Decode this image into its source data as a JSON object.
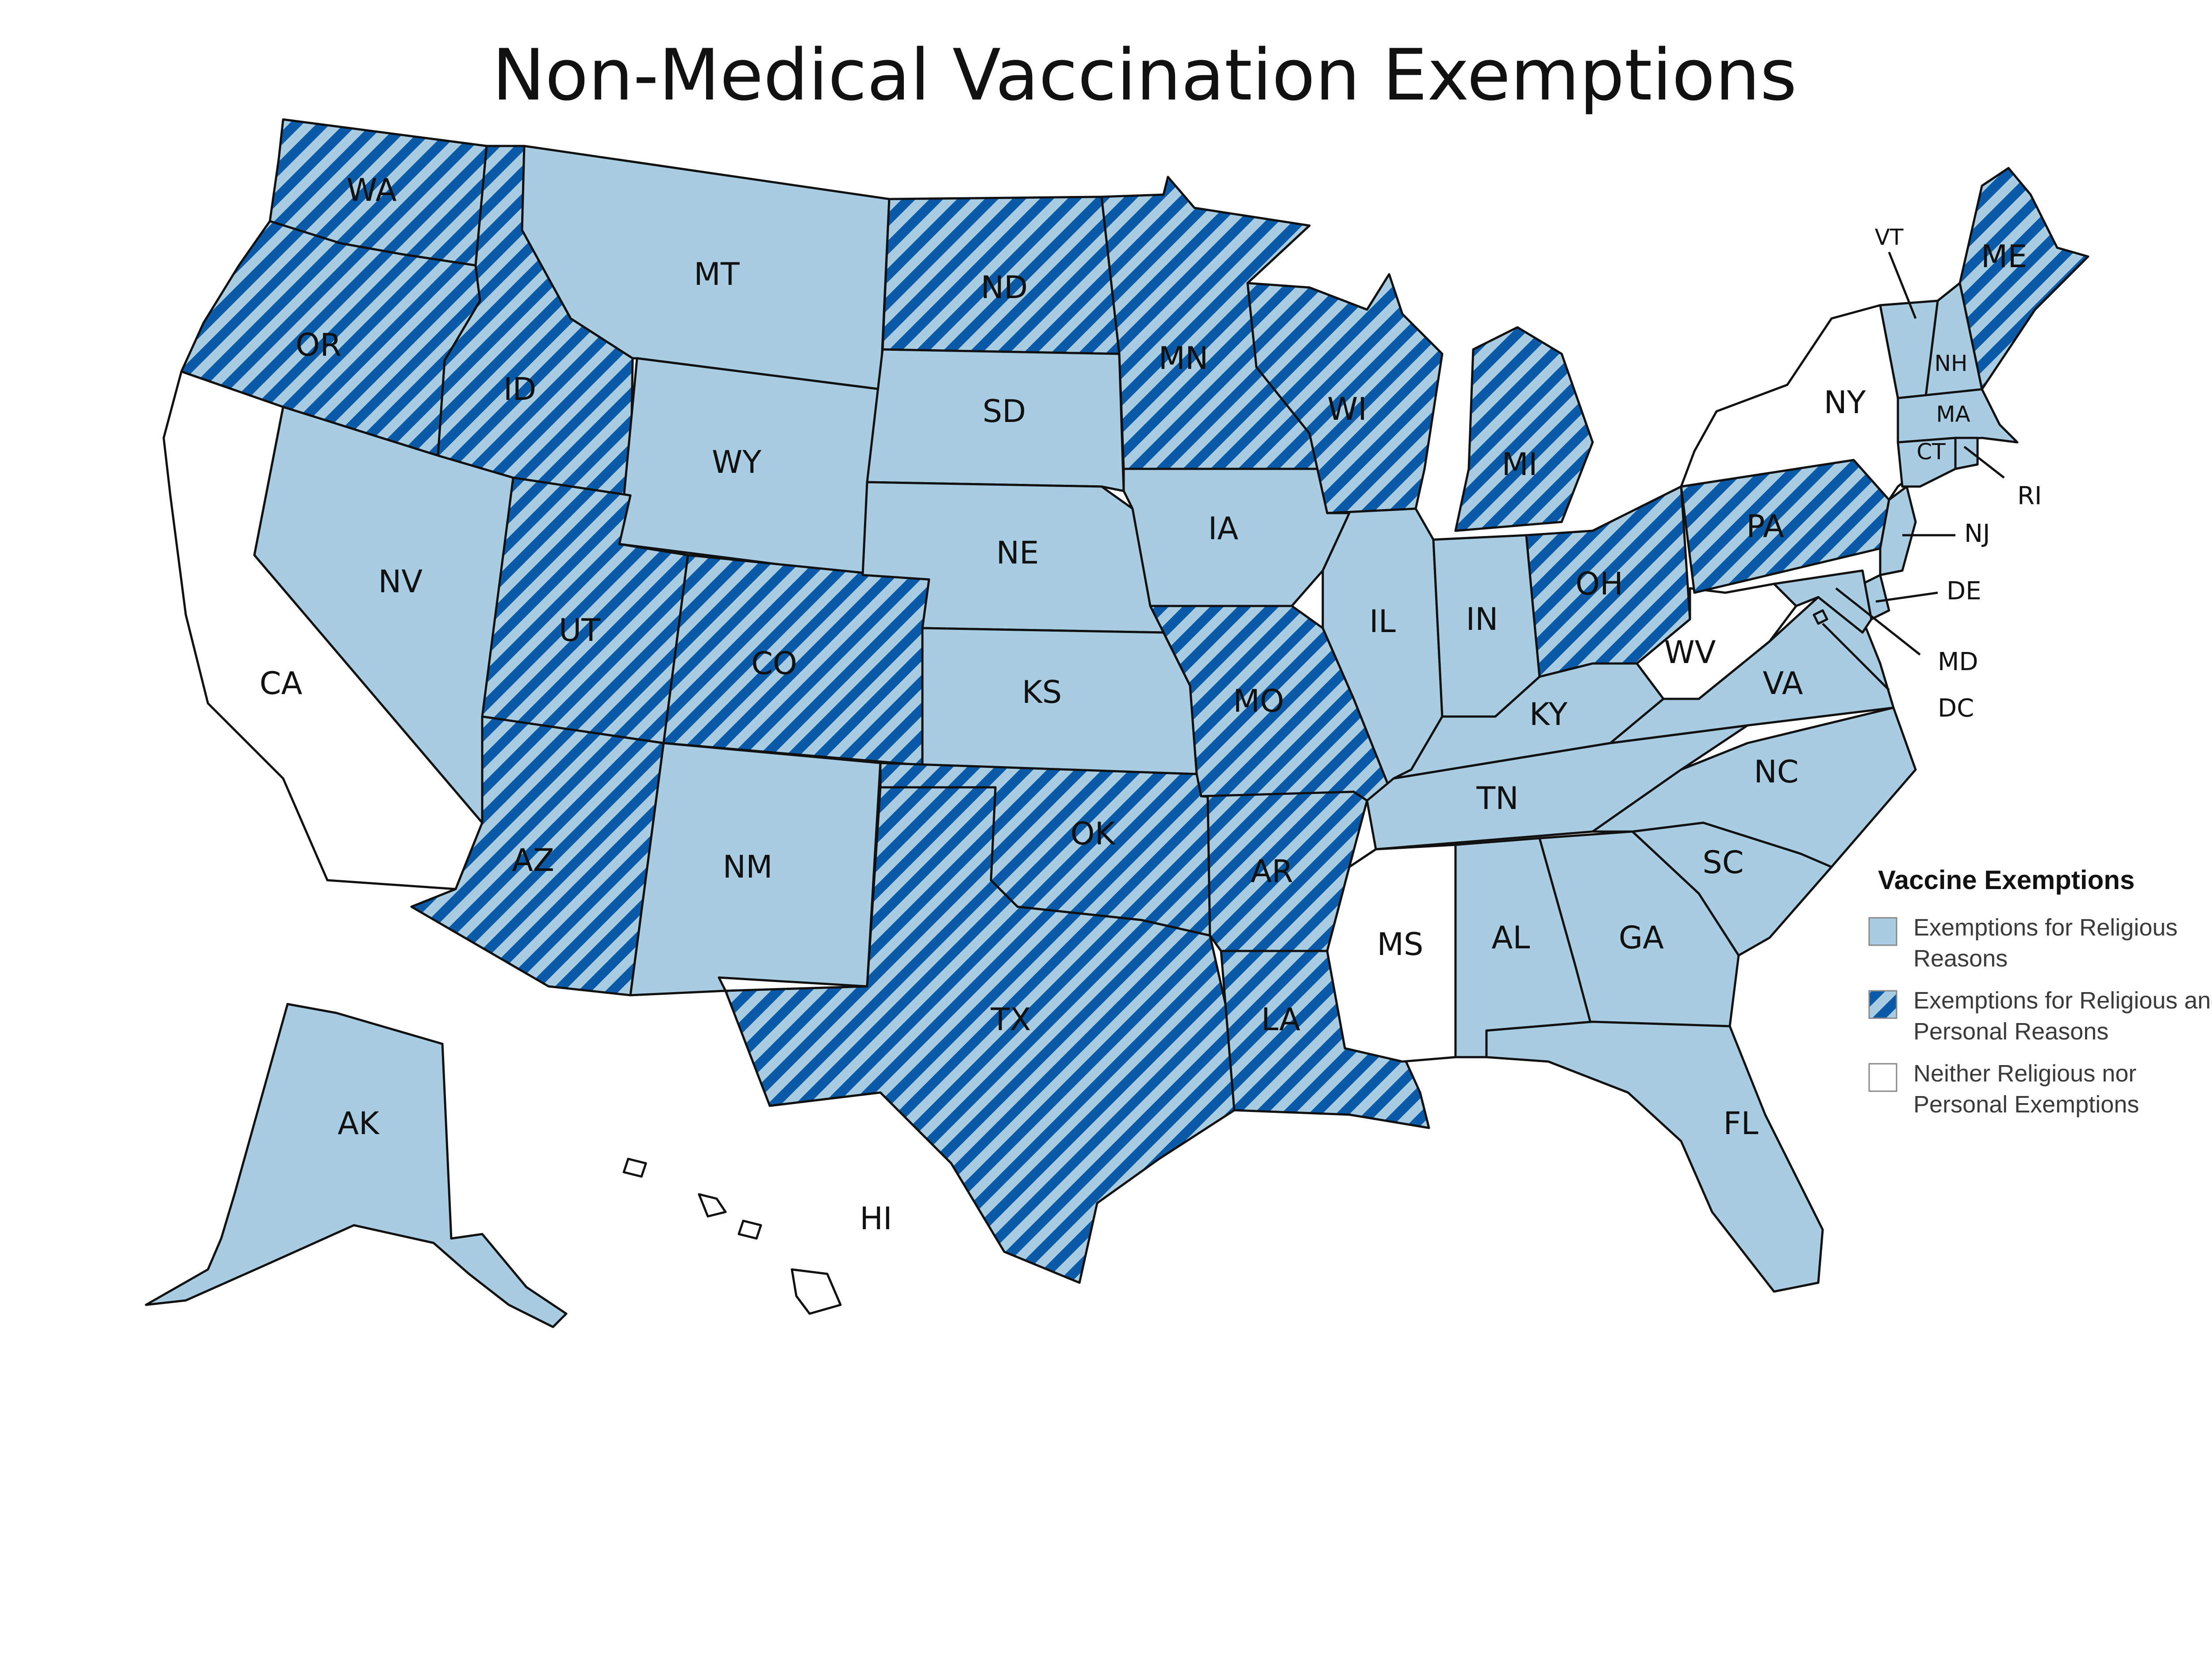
{
  "title": "Non-Medical Vaccination Exemptions",
  "colors": {
    "religious": "#a8cde2",
    "stripe_dark": "#0b5aa8",
    "stripe_light": "#a8cde2",
    "none": "#ffffff",
    "outline": "#111111"
  },
  "legend": {
    "title": "Vaccine Exemptions",
    "items": [
      {
        "key": "religious",
        "line1": "Exemptions for Religious",
        "line2": "Reasons"
      },
      {
        "key": "both",
        "line1": "Exemptions for Religious and",
        "line2": "Personal Reasons"
      },
      {
        "key": "none",
        "line1": "Neither Religious nor",
        "line2": "Personal Exemptions"
      }
    ]
  },
  "states": {
    "WA": "both",
    "OR": "both",
    "CA": "none",
    "ID": "both",
    "NV": "religious",
    "MT": "religious",
    "WY": "religious",
    "UT": "both",
    "AZ": "both",
    "CO": "both",
    "NM": "religious",
    "ND": "both",
    "SD": "religious",
    "NE": "religious",
    "KS": "religious",
    "OK": "both",
    "TX": "both",
    "MN": "both",
    "IA": "religious",
    "MO": "both",
    "AR": "both",
    "LA": "both",
    "WI": "both",
    "IL": "religious",
    "MI": "both",
    "IN": "religious",
    "OH": "both",
    "KY": "religious",
    "TN": "religious",
    "MS": "none",
    "AL": "religious",
    "GA": "religious",
    "FL": "religious",
    "SC": "religious",
    "NC": "religious",
    "VA": "religious",
    "WV": "none",
    "PA": "both",
    "NY": "none",
    "VT": "religious",
    "NH": "religious",
    "ME": "both",
    "MA": "religious",
    "CT": "religious",
    "RI": "religious",
    "NJ": "religious",
    "DE": "religious",
    "MD": "religious",
    "DC": "religious",
    "AK": "religious",
    "HI": "none"
  },
  "labels": {
    "WA": "WA",
    "OR": "OR",
    "CA": "CA",
    "ID": "ID",
    "NV": "NV",
    "MT": "MT",
    "WY": "WY",
    "UT": "UT",
    "AZ": "AZ",
    "CO": "CO",
    "NM": "NM",
    "ND": "ND",
    "SD": "SD",
    "NE": "NE",
    "KS": "KS",
    "OK": "OK",
    "TX": "TX",
    "MN": "MN",
    "IA": "IA",
    "MO": "MO",
    "AR": "AR",
    "LA": "LA",
    "WI": "WI",
    "IL": "IL",
    "MI": "MI",
    "IN": "IN",
    "OH": "OH",
    "KY": "KY",
    "TN": "TN",
    "MS": "MS",
    "AL": "AL",
    "GA": "GA",
    "FL": "FL",
    "SC": "SC",
    "NC": "NC",
    "VA": "VA",
    "WV": "WV",
    "PA": "PA",
    "NY": "NY",
    "VT": "VT",
    "NH": "NH",
    "ME": "ME",
    "MA": "MA",
    "CT": "CT",
    "RI": "RI",
    "NJ": "NJ",
    "DE": "DE",
    "MD": "MD",
    "DC": "DC",
    "AK": "AK",
    "HI": "HI"
  }
}
